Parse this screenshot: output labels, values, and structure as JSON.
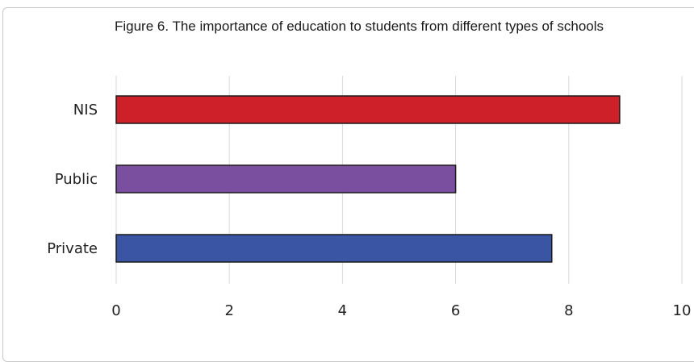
{
  "chart_data": {
    "type": "bar",
    "orientation": "horizontal",
    "title": "Figure 6. The importance of education to students from different types of schools",
    "categories": [
      "NIS",
      "Public",
      "Private"
    ],
    "values": [
      8.9,
      6.0,
      7.7
    ],
    "colors": [
      "#cd2029",
      "#7a4f9f",
      "#3a55a4"
    ],
    "xlim": [
      0,
      10
    ],
    "xticks": [
      0,
      2,
      4,
      6,
      8,
      10
    ],
    "xlabel": "",
    "ylabel": "",
    "grid": true,
    "legend": "none"
  }
}
